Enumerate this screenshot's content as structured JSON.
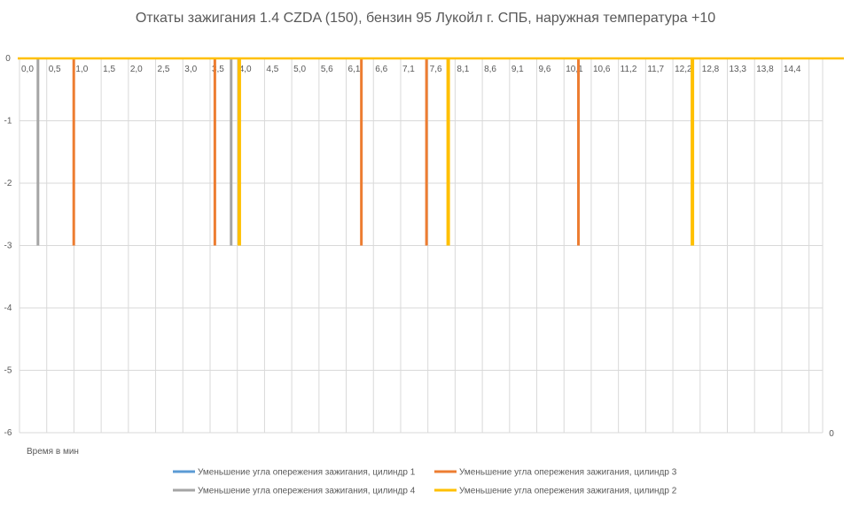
{
  "chart_data": {
    "type": "line",
    "title": "Откаты зажигания 1.4 CZDA (150), бензин 95 Лукойл г. СПБ, наружная температура +10",
    "xlabel": "Время в мин",
    "ylabel": "",
    "x_tick_labels": [
      "0,0",
      "0,5",
      "1,0",
      "1,5",
      "2,0",
      "2,5",
      "3,0",
      "3,5",
      "4,0",
      "4,5",
      "5,0",
      "5,6",
      "6,1",
      "6,6",
      "7,1",
      "7,6",
      "8,1",
      "8,6",
      "9,1",
      "9,6",
      "10,1",
      "10,6",
      "11,2",
      "11,7",
      "12,2",
      "12,8",
      "13,3",
      "13,8",
      "14,4"
    ],
    "xlim": [
      0,
      14.8
    ],
    "ylim": [
      -6,
      0
    ],
    "y_ticks": [
      0,
      -1,
      -2,
      -3,
      -4,
      -5,
      -6
    ],
    "y_tick_labels": [
      "0",
      "-1",
      "-2",
      "-3",
      "-4",
      "-5",
      "-6"
    ],
    "secondary_axis_label": "0",
    "grid": true,
    "legend_position": "bottom",
    "series": [
      {
        "name": "Уменьшение угла опережения зажигания, цилиндр 1",
        "color": "#5B9BD5",
        "width": 2,
        "spikes": []
      },
      {
        "name": "Уменьшение угла опережения зажигания, цилиндр 3",
        "color": "#ED7D31",
        "width": 3,
        "spikes": [
          {
            "x": 1.0,
            "value": -3
          },
          {
            "x": 3.6,
            "value": -3
          },
          {
            "x": 6.3,
            "value": -3
          },
          {
            "x": 7.5,
            "value": -3
          },
          {
            "x": 10.3,
            "value": -3
          }
        ]
      },
      {
        "name": "Уменьшение угла опережения зажигания, цилиндр 4",
        "color": "#A5A5A5",
        "width": 3,
        "spikes": [
          {
            "x": 0.34,
            "value": -3
          },
          {
            "x": 3.9,
            "value": -3
          }
        ]
      },
      {
        "name": "Уменьшение угла опережения зажигания, цилиндр 2",
        "color": "#FFC000",
        "width": 4,
        "spikes": [
          {
            "x": 4.05,
            "value": -3
          },
          {
            "x": 7.9,
            "value": -3
          },
          {
            "x": 12.4,
            "value": -3
          }
        ]
      }
    ],
    "legend_order": [
      0,
      1,
      2,
      3
    ]
  }
}
